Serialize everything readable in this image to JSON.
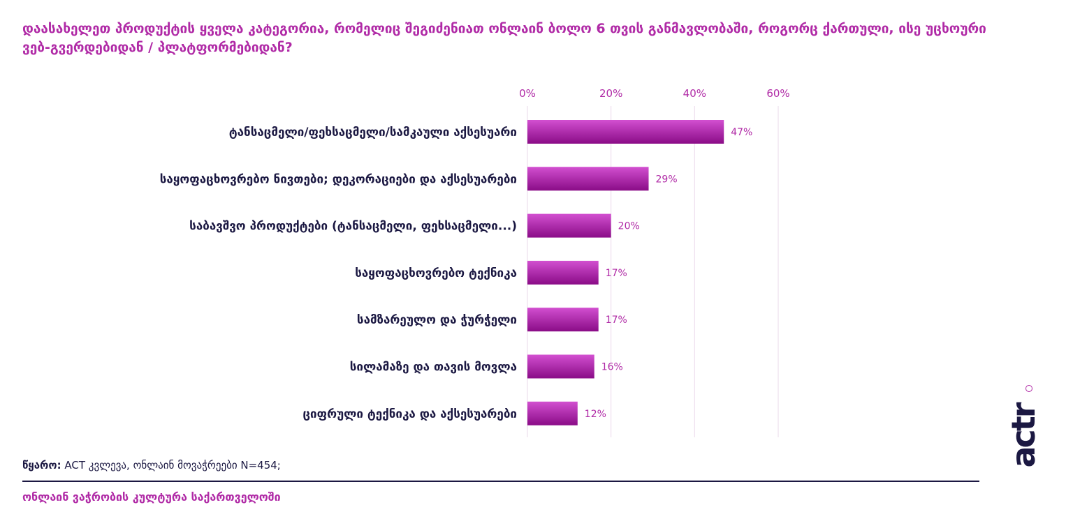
{
  "title": "დაასახელეთ პროდუქტის ყველა კატეგორია, რომელიც შეგიძენიათ ონლაინ ბოლო 6 თვის განმავლობაში, როგორც ქართული, ისე უცხოური ვებ-გვერდებიდან / პლატფორმებიდან?",
  "source_label": "წყარო:",
  "source_text": "ACT კვლევა, ონლაინ მოვაჭრეები N=454;",
  "footer": "ონლაინ ვაჭრობის კულტურა საქართველოში",
  "logo_text": "actr",
  "colors": {
    "accent": "#b02aa6",
    "bar_top": "#d24fd0",
    "bar_bottom": "#8a0c87",
    "label": "#1b1842",
    "grid": "#ead9ea"
  },
  "chart_data": {
    "type": "bar",
    "orientation": "horizontal",
    "categories": [
      "ტანსაცმელი/ფეხსაცმელი/სამკაული აქსესუარი",
      "საყოფაცხოვრებო ნივთები; დეკორაციები და აქსესუარები",
      "საბავშვო პროდუქტები (ტანსაცმელი, ფეხსაცმელი...)",
      "საყოფაცხოვრებო ტექნიკა",
      "სამზარეულო და ჭურჭელი",
      "სილამაზე და თავის მოვლა",
      "ციფრული ტექნიკა და აქსესუარები"
    ],
    "values": [
      47,
      29,
      20,
      17,
      17,
      16,
      12
    ],
    "value_labels": [
      "47%",
      "29%",
      "20%",
      "17%",
      "17%",
      "16%",
      "12%"
    ],
    "xlim": [
      0,
      60
    ],
    "ticks": [
      0,
      20,
      40,
      60
    ],
    "tick_labels": [
      "0%",
      "20%",
      "40%",
      "60%"
    ],
    "axis_position": "top",
    "grid": true,
    "legend": "none"
  }
}
